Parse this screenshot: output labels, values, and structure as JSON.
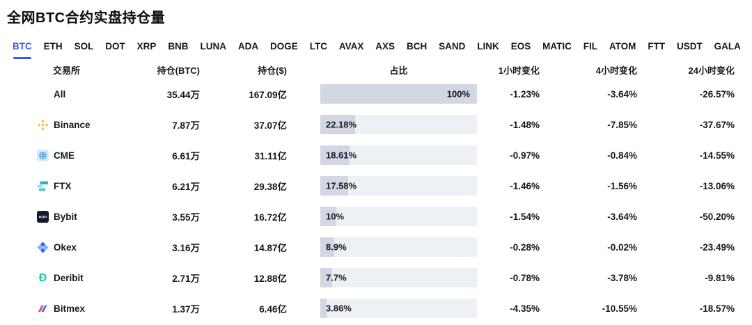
{
  "page": {
    "title": "全网BTC合约实盘持仓量"
  },
  "tabs": [
    {
      "label": "BTC",
      "active": true
    },
    {
      "label": "ETH",
      "active": false
    },
    {
      "label": "SOL",
      "active": false
    },
    {
      "label": "DOT",
      "active": false
    },
    {
      "label": "XRP",
      "active": false
    },
    {
      "label": "BNB",
      "active": false
    },
    {
      "label": "LUNA",
      "active": false
    },
    {
      "label": "ADA",
      "active": false
    },
    {
      "label": "DOGE",
      "active": false
    },
    {
      "label": "LTC",
      "active": false
    },
    {
      "label": "AVAX",
      "active": false
    },
    {
      "label": "AXS",
      "active": false
    },
    {
      "label": "BCH",
      "active": false
    },
    {
      "label": "SAND",
      "active": false
    },
    {
      "label": "LINK",
      "active": false
    },
    {
      "label": "EOS",
      "active": false
    },
    {
      "label": "MATIC",
      "active": false
    },
    {
      "label": "FIL",
      "active": false
    },
    {
      "label": "ATOM",
      "active": false
    },
    {
      "label": "FTT",
      "active": false
    },
    {
      "label": "USDT",
      "active": false
    },
    {
      "label": "GALA",
      "active": false
    }
  ],
  "table": {
    "headers": [
      "交易所",
      "持仓(BTC)",
      "持仓($)",
      "占比",
      "1小时变化",
      "4小时变化",
      "24小时变化"
    ],
    "rows": [
      {
        "exchange": "All",
        "icon": "none",
        "btc": "35.44万",
        "usd": "167.09亿",
        "share": "100%",
        "share_pct": 100,
        "h1": "-1.23%",
        "h4": "-3.64%",
        "h24": "-26.57%"
      },
      {
        "exchange": "Binance",
        "icon": "binance",
        "btc": "7.87万",
        "usd": "37.07亿",
        "share": "22.18%",
        "share_pct": 22.18,
        "h1": "-1.48%",
        "h4": "-7.85%",
        "h24": "-37.67%"
      },
      {
        "exchange": "CME",
        "icon": "cme",
        "btc": "6.61万",
        "usd": "31.11亿",
        "share": "18.61%",
        "share_pct": 18.61,
        "h1": "-0.97%",
        "h4": "-0.84%",
        "h24": "-14.55%"
      },
      {
        "exchange": "FTX",
        "icon": "ftx",
        "btc": "6.21万",
        "usd": "29.38亿",
        "share": "17.58%",
        "share_pct": 17.58,
        "h1": "-1.46%",
        "h4": "-1.56%",
        "h24": "-13.06%"
      },
      {
        "exchange": "Bybit",
        "icon": "bybit",
        "btc": "3.55万",
        "usd": "16.72亿",
        "share": "10%",
        "share_pct": 10,
        "h1": "-1.54%",
        "h4": "-3.64%",
        "h24": "-50.20%"
      },
      {
        "exchange": "Okex",
        "icon": "okex",
        "btc": "3.16万",
        "usd": "14.87亿",
        "share": "8.9%",
        "share_pct": 8.9,
        "h1": "-0.28%",
        "h4": "-0.02%",
        "h24": "-23.49%"
      },
      {
        "exchange": "Deribit",
        "icon": "deribit",
        "btc": "2.71万",
        "usd": "12.88亿",
        "share": "7.7%",
        "share_pct": 7.7,
        "h1": "-0.78%",
        "h4": "-3.78%",
        "h24": "-9.81%"
      },
      {
        "exchange": "Bitmex",
        "icon": "bitmex",
        "btc": "1.37万",
        "usd": "6.46亿",
        "share": "3.86%",
        "share_pct": 3.86,
        "h1": "-4.35%",
        "h4": "-10.55%",
        "h24": "-18.57%"
      }
    ]
  },
  "colors": {
    "accent": "#3A5BF0",
    "text": "#16181C",
    "bar_fill": "#D3D7E3",
    "bar_bg": "#EDF0F5",
    "binance_gold": "#F3BA2F",
    "deribit_teal": "#23C9A7"
  }
}
